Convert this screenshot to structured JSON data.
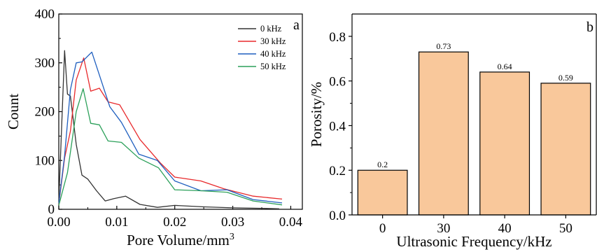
{
  "chart_data": [
    {
      "panel": "a",
      "type": "line",
      "xlabel": "Pore Volume/mm",
      "xlabel_superscript": "3",
      "ylabel": "Count",
      "xlim": [
        0,
        0.042
      ],
      "ylim": [
        0,
        400
      ],
      "xticks": [
        "0.00",
        "0.01",
        "0.02",
        "0.03",
        "0.04"
      ],
      "xtick_values": [
        0,
        0.01,
        0.02,
        0.03,
        0.04
      ],
      "yticks": [
        "0",
        "100",
        "200",
        "300",
        "400"
      ],
      "ytick_values": [
        0,
        100,
        200,
        300,
        400
      ],
      "legend_placement": "top-right",
      "series": [
        {
          "name": "0 kHz",
          "color": "#333333",
          "points": [
            [
              0.0,
              15
            ],
            [
              0.0005,
              170
            ],
            [
              0.001,
              325
            ],
            [
              0.0015,
              236
            ],
            [
              0.002,
              232
            ],
            [
              0.003,
              133
            ],
            [
              0.004,
              70
            ],
            [
              0.005,
              62
            ],
            [
              0.0065,
              38
            ],
            [
              0.008,
              17
            ],
            [
              0.0095,
              22
            ],
            [
              0.0115,
              27
            ],
            [
              0.014,
              10
            ],
            [
              0.017,
              4
            ],
            [
              0.02,
              8
            ],
            [
              0.025,
              5
            ],
            [
              0.03,
              3
            ],
            [
              0.035,
              2
            ],
            [
              0.038,
              1
            ]
          ]
        },
        {
          "name": "30 kHz",
          "color": "#e8292b",
          "points": [
            [
              0.0,
              10
            ],
            [
              0.001,
              105
            ],
            [
              0.002,
              160
            ],
            [
              0.003,
              265
            ],
            [
              0.0043,
              310
            ],
            [
              0.0055,
              242
            ],
            [
              0.007,
              248
            ],
            [
              0.0085,
              220
            ],
            [
              0.0105,
              214
            ],
            [
              0.014,
              143
            ],
            [
              0.0175,
              95
            ],
            [
              0.02,
              66
            ],
            [
              0.0245,
              58
            ],
            [
              0.0285,
              42
            ],
            [
              0.0335,
              27
            ],
            [
              0.0385,
              21
            ]
          ]
        },
        {
          "name": "40 kHz",
          "color": "#1f5fbf",
          "points": [
            [
              0.0,
              12
            ],
            [
              0.001,
              110
            ],
            [
              0.002,
              245
            ],
            [
              0.003,
              300
            ],
            [
              0.004,
              302
            ],
            [
              0.0057,
              322
            ],
            [
              0.007,
              275
            ],
            [
              0.0088,
              210
            ],
            [
              0.0108,
              178
            ],
            [
              0.0138,
              113
            ],
            [
              0.017,
              100
            ],
            [
              0.02,
              58
            ],
            [
              0.0245,
              38
            ],
            [
              0.029,
              40
            ],
            [
              0.0335,
              20
            ],
            [
              0.0385,
              13
            ]
          ]
        },
        {
          "name": "50 kHz",
          "color": "#2ca05a",
          "points": [
            [
              0.0,
              8
            ],
            [
              0.0015,
              75
            ],
            [
              0.003,
              200
            ],
            [
              0.0042,
              247
            ],
            [
              0.0055,
              176
            ],
            [
              0.007,
              173
            ],
            [
              0.0085,
              140
            ],
            [
              0.0108,
              137
            ],
            [
              0.0138,
              105
            ],
            [
              0.0172,
              85
            ],
            [
              0.02,
              40
            ],
            [
              0.0245,
              38
            ],
            [
              0.029,
              35
            ],
            [
              0.0335,
              17
            ],
            [
              0.0385,
              9
            ]
          ]
        }
      ]
    },
    {
      "panel": "b",
      "type": "bar",
      "categories": [
        "0",
        "30",
        "40",
        "50"
      ],
      "values": [
        0.2,
        0.73,
        0.64,
        0.59
      ],
      "data_labels": [
        "0.2",
        "0.73",
        "0.64",
        "0.59"
      ],
      "xlabel": "Ultrasonic Frequency/kHz",
      "ylabel": "Porosity/%",
      "ylim": [
        0,
        0.9
      ],
      "yticks": [
        "0.0",
        "0.2",
        "0.4",
        "0.6",
        "0.8"
      ],
      "ytick_values": [
        0,
        0.2,
        0.4,
        0.6,
        0.8
      ],
      "bar_color": "#f9c89b",
      "bar_edge_color": "#000000"
    }
  ]
}
